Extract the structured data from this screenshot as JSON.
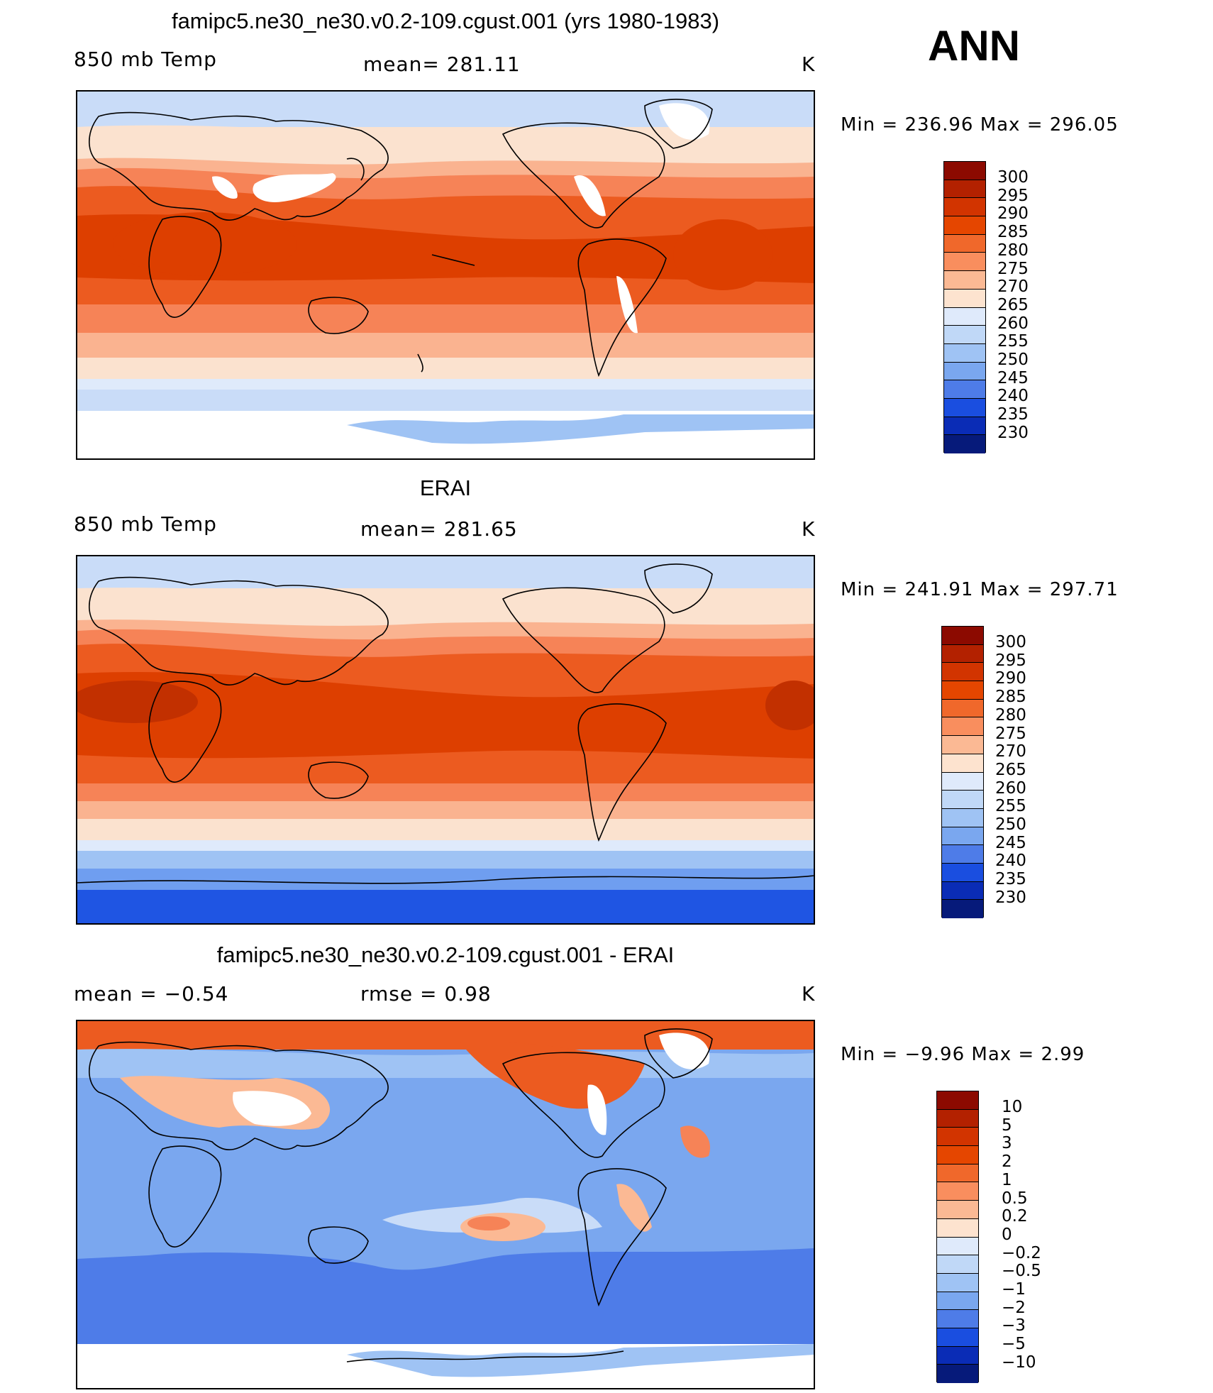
{
  "season": "ANN",
  "panels": [
    {
      "title": "famipc5.ne30_ne30.v0.2-109.cgust.001 (yrs 1980-1983)",
      "left_label": "850 mb Temp",
      "center_label": "mean= 281.11",
      "units": "K",
      "minmax": "Min  =  236.96  Max  =  296.05",
      "legend_labels": [
        "300",
        "295",
        "290",
        "285",
        "280",
        "275",
        "270",
        "265",
        "260",
        "255",
        "250",
        "245",
        "240",
        "235",
        "230"
      ],
      "legend_colors": [
        "#8c0a00",
        "#b32100",
        "#d23400",
        "#e54600",
        "#f0682b",
        "#f98e5e",
        "#fbb994",
        "#fde3cf",
        "#dfeafb",
        "#c0d8f7",
        "#9fc3f4",
        "#7aa7ef",
        "#4e7ce8",
        "#1a4ee0",
        "#0a2cb6",
        "#061a7a"
      ]
    },
    {
      "title": "ERAI",
      "left_label": "850 mb Temp",
      "center_label": "mean= 281.65",
      "units": "K",
      "minmax": "Min  =  241.91  Max  =  297.71",
      "legend_labels": [
        "300",
        "295",
        "290",
        "285",
        "280",
        "275",
        "270",
        "265",
        "260",
        "255",
        "250",
        "245",
        "240",
        "235",
        "230"
      ],
      "legend_colors": [
        "#8c0a00",
        "#b32100",
        "#d23400",
        "#e54600",
        "#f0682b",
        "#f98e5e",
        "#fbb994",
        "#fde3cf",
        "#dfeafb",
        "#c0d8f7",
        "#9fc3f4",
        "#7aa7ef",
        "#4e7ce8",
        "#1a4ee0",
        "#0a2cb6",
        "#061a7a"
      ]
    },
    {
      "title": "famipc5.ne30_ne30.v0.2-109.cgust.001 - ERAI",
      "left_label": "mean =   −0.54",
      "center_label": "rmse =    0.98",
      "units": "K",
      "minmax": "Min  =   −9.96  Max  =     2.99",
      "legend_labels": [
        "10",
        "5",
        "3",
        "2",
        "1",
        "0.5",
        "0.2",
        "0",
        "−0.2",
        "−0.5",
        "−1",
        "−2",
        "−3",
        "−5",
        "−10"
      ],
      "legend_colors": [
        "#8c0a00",
        "#b32100",
        "#d23400",
        "#e54600",
        "#f0682b",
        "#f98e5e",
        "#fbb994",
        "#fde3cf",
        "#dfeafb",
        "#c0d8f7",
        "#9fc3f4",
        "#7aa7ef",
        "#4e7ce8",
        "#1a4ee0",
        "#0a2cb6",
        "#061a7a"
      ]
    }
  ],
  "map_colors": {
    "polar_blue": "#6f9ef0",
    "deep_blue": "#1f55e3",
    "light_blue": "#c9dcf8",
    "pale": "#fbe2cf",
    "peach": "#fab390",
    "salmon": "#f68357",
    "orange": "#ec5b20",
    "red_orange": "#dd3f00",
    "dark_red": "#c23000",
    "mask": "#ffffff",
    "coast": "#000000"
  }
}
